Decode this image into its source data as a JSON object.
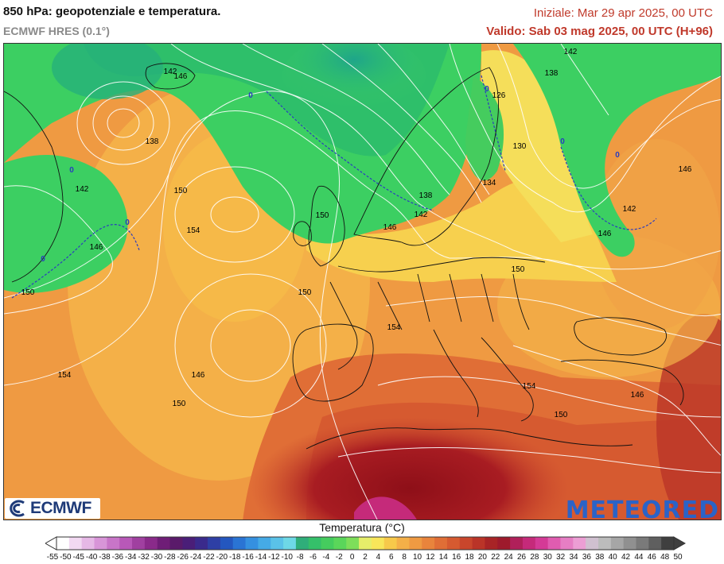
{
  "header": {
    "title": "850 hPa: geopotenziale e temperatura.",
    "model": "ECMWF HRES (0.1°)",
    "init": "Iniziale: Mar 29 apr 2025, 00 UTC",
    "valid": "Valido: Sab 03 mag 2025, 00 UTC (H+96)"
  },
  "logos": {
    "left": "ECMWF",
    "right": "METEORED"
  },
  "legend": {
    "title": "Temperatura (°C)",
    "ticks": [
      "-55",
      "-50",
      "-45",
      "-40",
      "-38",
      "-36",
      "-34",
      "-32",
      "-30",
      "-28",
      "-26",
      "-24",
      "-22",
      "-20",
      "-18",
      "-16",
      "-14",
      "-12",
      "-10",
      "-8",
      "-6",
      "-4",
      "-2",
      "0",
      "2",
      "4",
      "6",
      "8",
      "10",
      "12",
      "14",
      "16",
      "18",
      "20",
      "22",
      "24",
      "26",
      "28",
      "30",
      "32",
      "34",
      "36",
      "38",
      "40",
      "42",
      "44",
      "46",
      "48",
      "50"
    ],
    "colors": [
      "#ffffff",
      "#f2d9f2",
      "#e6b8e6",
      "#d895d8",
      "#c875c8",
      "#b858b8",
      "#a040a0",
      "#8a2a8a",
      "#6f1d77",
      "#5a1a6a",
      "#4a1e78",
      "#3a2a8c",
      "#2e3fa5",
      "#2457bf",
      "#2a74d4",
      "#3590e0",
      "#45aae6",
      "#5ac2e8",
      "#6ed8e6",
      "#2fae7a",
      "#35c06a",
      "#45cc5e",
      "#5ad65a",
      "#7ede5a",
      "#e6ee6a",
      "#f8e65a",
      "#f7c94a",
      "#f4b048",
      "#ef9a42",
      "#e9843c",
      "#e06e36",
      "#d65a30",
      "#c9462c",
      "#ba3428",
      "#a82426",
      "#9e1a2c",
      "#b0205a",
      "#c52a7a",
      "#d43a96",
      "#e05cb0",
      "#e67ec4",
      "#ec9ed4",
      "#d0c0d0",
      "#bcbcbc",
      "#a6a6a6",
      "#909090",
      "#7a7a7a",
      "#5f5f5f",
      "#3f3f3f"
    ]
  },
  "map_labels": [
    {
      "text": "142"
    },
    {
      "text": "146"
    },
    {
      "text": "0"
    },
    {
      "text": "138"
    },
    {
      "text": "0"
    },
    {
      "text": "142"
    },
    {
      "text": "150"
    },
    {
      "text": "154"
    },
    {
      "text": "146"
    },
    {
      "text": "0"
    },
    {
      "text": "0"
    },
    {
      "text": "150"
    },
    {
      "text": "150"
    },
    {
      "text": "146"
    },
    {
      "text": "142"
    },
    {
      "text": "138"
    },
    {
      "text": "134"
    },
    {
      "text": "130"
    },
    {
      "text": "126"
    },
    {
      "text": "0"
    },
    {
      "text": "142"
    },
    {
      "text": "138"
    },
    {
      "text": "0"
    },
    {
      "text": "0"
    },
    {
      "text": "142"
    },
    {
      "text": "146"
    },
    {
      "text": "146"
    },
    {
      "text": "150"
    },
    {
      "text": "150"
    },
    {
      "text": "154"
    },
    {
      "text": "154"
    },
    {
      "text": "146"
    },
    {
      "text": "150"
    },
    {
      "text": "154"
    },
    {
      "text": "146"
    },
    {
      "text": "150"
    }
  ]
}
